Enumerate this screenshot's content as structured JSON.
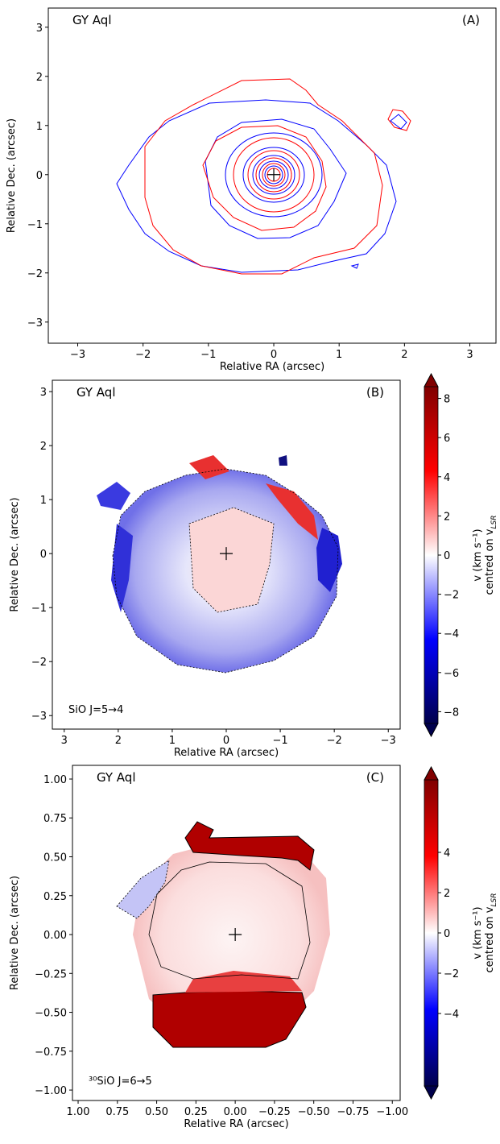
{
  "chart_data": [
    {
      "type": "contour",
      "title": "GY Aql",
      "panel_label": "(A)",
      "x_label": "Relative RA (arcsec)",
      "y_label": "Relative Dec. (arcsec)",
      "series": [
        {
          "color": "#0000ff"
        },
        {
          "color": "#ff0000"
        }
      ],
      "marker_position": [
        0,
        0
      ],
      "xlim": [
        -3.45,
        3.4
      ],
      "ylim": [
        -3.43,
        3.39
      ],
      "xticks": [
        {
          "value": -3,
          "label": "−3"
        },
        {
          "value": -2,
          "label": "−2"
        },
        {
          "value": -1,
          "label": "−1"
        },
        0,
        1,
        2,
        3
      ],
      "yticks": [
        {
          "value": -3,
          "label": "−3"
        },
        {
          "value": -2,
          "label": "−2"
        },
        {
          "value": -1,
          "label": "−1"
        },
        0,
        1,
        2,
        3
      ]
    },
    {
      "type": "image",
      "title": "GY Aql",
      "panel_label": "(B)",
      "line_label": "SiO  J=5→4",
      "x_label": "Relative RA (arcsec)",
      "y_label": "Relative Dec. (arcsec)",
      "marker_position": [
        0,
        0
      ],
      "xlim": [
        3.22,
        -3.22
      ],
      "ylim": [
        -3.25,
        3.21
      ],
      "xticks": [
        3,
        2,
        1,
        0,
        {
          "value": -1,
          "label": "−1"
        },
        {
          "value": -2,
          "label": "−2"
        },
        {
          "value": -3,
          "label": "−3"
        }
      ],
      "yticks": [
        {
          "value": -3,
          "label": "−3"
        },
        {
          "value": -2,
          "label": "−2"
        },
        {
          "value": -1,
          "label": "−1"
        },
        0,
        1,
        2,
        3
      ],
      "colorbar": {
        "label": "v (km s⁻¹)",
        "label2": "centred on v",
        "label2_sub": "LSR",
        "lim": [
          -8.6,
          8.6
        ],
        "ticks": [
          {
            "value": -8,
            "label": "−8"
          },
          {
            "value": -6,
            "label": "−6"
          },
          {
            "value": -4,
            "label": "−4"
          },
          {
            "value": -2,
            "label": "−2"
          },
          0,
          2,
          4,
          6,
          8
        ]
      }
    },
    {
      "type": "image",
      "title": "GY Aql",
      "panel_label": "(C)",
      "line_label": "³⁰SiO  J=6→5",
      "x_label": "Relative RA (arcsec)",
      "y_label": "Relative Dec. (arcsec)",
      "marker_position": [
        0,
        0
      ],
      "xlim": [
        1.036,
        -1.05
      ],
      "ylim": [
        -1.067,
        1.088
      ],
      "xticks": [
        {
          "value": 1,
          "label": "1.00"
        },
        {
          "value": 0.75,
          "label": "0.75"
        },
        {
          "value": 0.5,
          "label": "0.50"
        },
        {
          "value": 0.25,
          "label": "0.25"
        },
        {
          "value": 0,
          "label": "0.00"
        },
        {
          "value": -0.25,
          "label": "−0.25"
        },
        {
          "value": -0.5,
          "label": "−0.50"
        },
        {
          "value": -0.75,
          "label": "−0.75"
        },
        {
          "value": -1,
          "label": "−1.00"
        }
      ],
      "yticks": [
        {
          "value": -1,
          "label": "−1.00"
        },
        {
          "value": -0.75,
          "label": "−0.75"
        },
        {
          "value": -0.5,
          "label": "−0.50"
        },
        {
          "value": -0.25,
          "label": "−0.25"
        },
        {
          "value": 0,
          "label": "0.00"
        },
        {
          "value": 0.25,
          "label": "0.25"
        },
        {
          "value": 0.5,
          "label": "0.50"
        },
        {
          "value": 0.75,
          "label": "0.75"
        },
        {
          "value": 1,
          "label": "1.00"
        }
      ],
      "colorbar": {
        "label": "v (km s⁻¹)",
        "label2": "centred on v",
        "label2_sub": "LSR",
        "lim": [
          -7.6,
          7.6
        ],
        "ticks": [
          {
            "value": -4,
            "label": "−4"
          },
          {
            "value": -2,
            "label": "−2"
          },
          0,
          2,
          4
        ]
      }
    }
  ]
}
